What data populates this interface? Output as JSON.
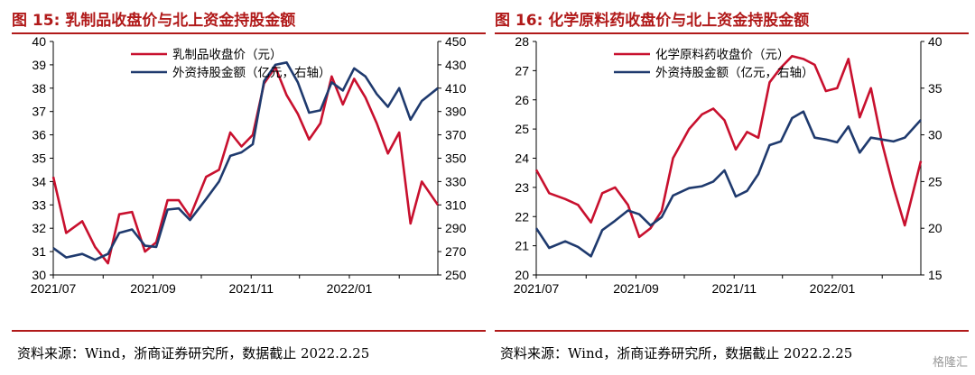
{
  "panels": [
    {
      "title": "图 15: 乳制品收盘价与北上资金持股金额",
      "source": "资料来源：Wind，浙商证券研究所，数据截止 2022.2.25",
      "chart_data": {
        "type": "line",
        "x": [
          "2021-07-01",
          "2021-07-09",
          "2021-07-19",
          "2021-07-27",
          "2021-08-04",
          "2021-08-11",
          "2021-08-19",
          "2021-08-27",
          "2021-09-03",
          "2021-09-10",
          "2021-09-17",
          "2021-09-24",
          "2021-10-04",
          "2021-10-12",
          "2021-10-19",
          "2021-10-26",
          "2021-11-02",
          "2021-11-09",
          "2021-11-16",
          "2021-11-23",
          "2021-11-30",
          "2021-12-07",
          "2021-12-14",
          "2021-12-21",
          "2021-12-28",
          "2022-01-04",
          "2022-01-11",
          "2022-01-18",
          "2022-01-25",
          "2022-02-01",
          "2022-02-08",
          "2022-02-15",
          "2022-02-25"
        ],
        "series": [
          {
            "name": "乳制品收盘价（元）",
            "axis": "left",
            "color": "#c8102e",
            "values": [
              34.2,
              31.8,
              32.3,
              31.2,
              30.5,
              32.6,
              32.7,
              31.0,
              31.4,
              33.2,
              33.2,
              32.5,
              34.2,
              34.5,
              36.1,
              35.5,
              36.0,
              38.2,
              38.9,
              37.7,
              36.9,
              35.8,
              36.5,
              38.5,
              37.3,
              38.4,
              37.6,
              36.5,
              35.2,
              36.1,
              32.2,
              34.0,
              33.0
            ]
          },
          {
            "name": "外资持股金额（亿元，右轴）",
            "axis": "right",
            "color": "#1f3a6e",
            "values": [
              273,
              265,
              268,
              263,
              268,
              286,
              289,
              275,
              274,
              306,
              307,
              297,
              315,
              330,
              352,
              355,
              362,
              416,
              430,
              432,
              415,
              389,
              391,
              415,
              408,
              427,
              420,
              405,
              394,
              410,
              383,
              399,
              410
            ]
          }
        ],
        "x_ticks": [
          "2021/07",
          "2021/09",
          "2021/11",
          "2022/01"
        ],
        "y_left": {
          "range": [
            30,
            40
          ],
          "ticks": [
            30,
            31,
            32,
            33,
            34,
            35,
            36,
            37,
            38,
            39,
            40
          ]
        },
        "y_right": {
          "range": [
            250,
            450
          ],
          "ticks": [
            250,
            270,
            290,
            310,
            330,
            350,
            370,
            390,
            410,
            430,
            450
          ]
        },
        "legend_position": "top-center",
        "grid": false
      }
    },
    {
      "title": "图 16: 化学原料药收盘价与北上资金持股金额",
      "source": "资料来源：Wind，浙商证券研究所，数据截止 2022.2.25",
      "chart_data": {
        "type": "line",
        "x": [
          "2021-07-01",
          "2021-07-09",
          "2021-07-19",
          "2021-07-27",
          "2021-08-04",
          "2021-08-11",
          "2021-08-19",
          "2021-08-27",
          "2021-09-03",
          "2021-09-10",
          "2021-09-17",
          "2021-09-24",
          "2021-10-04",
          "2021-10-12",
          "2021-10-19",
          "2021-10-26",
          "2021-11-02",
          "2021-11-09",
          "2021-11-16",
          "2021-11-23",
          "2021-11-30",
          "2021-12-07",
          "2021-12-14",
          "2021-12-21",
          "2021-12-28",
          "2022-01-04",
          "2022-01-11",
          "2022-01-18",
          "2022-01-25",
          "2022-02-01",
          "2022-02-08",
          "2022-02-15",
          "2022-02-25"
        ],
        "series": [
          {
            "name": "化学原料药收盘价（元）",
            "axis": "left",
            "color": "#c8102e",
            "values": [
              23.6,
              22.8,
              22.6,
              22.4,
              21.8,
              22.8,
              23.0,
              22.4,
              21.3,
              21.6,
              22.2,
              24.0,
              25.0,
              25.5,
              25.7,
              25.3,
              24.3,
              24.9,
              24.7,
              26.6,
              27.1,
              27.5,
              27.4,
              27.2,
              26.3,
              26.4,
              27.4,
              25.4,
              26.4,
              24.5,
              23.0,
              21.7,
              23.9
            ]
          },
          {
            "name": "外资持股金额（亿元，右轴）",
            "axis": "right",
            "color": "#1f3a6e",
            "values": [
              20.0,
              17.9,
              18.6,
              18.0,
              17.0,
              19.8,
              20.8,
              21.9,
              21.5,
              20.3,
              21.2,
              23.5,
              24.3,
              24.5,
              25.0,
              26.2,
              23.4,
              24.0,
              25.8,
              28.9,
              29.3,
              31.8,
              32.5,
              29.7,
              29.5,
              29.2,
              30.9,
              28.1,
              29.7,
              29.5,
              29.3,
              29.7,
              31.6
            ]
          }
        ],
        "x_ticks": [
          "2021/07",
          "2021/09",
          "2021/11",
          "2022/01"
        ],
        "y_left": {
          "range": [
            20,
            28
          ],
          "ticks": [
            20,
            21,
            22,
            23,
            24,
            25,
            26,
            27,
            28
          ]
        },
        "y_right": {
          "range": [
            15,
            40
          ],
          "ticks": [
            15,
            20,
            25,
            30,
            35,
            40
          ]
        },
        "legend_position": "top-center",
        "grid": false
      }
    }
  ],
  "watermark": "格隆汇"
}
